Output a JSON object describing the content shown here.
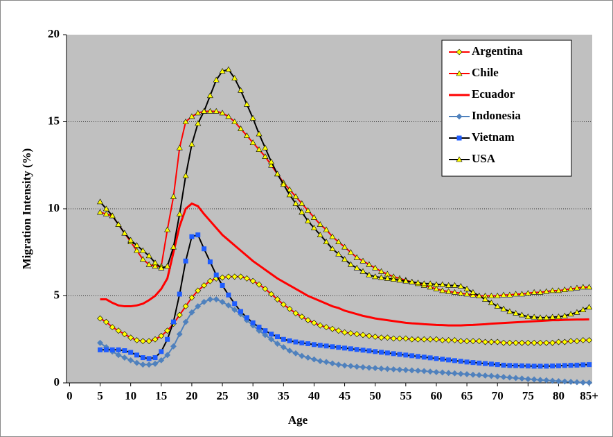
{
  "chart_data": {
    "type": "line",
    "x_label": "Age",
    "y_label": "Migration Intensity (%)",
    "x": [
      5,
      6,
      7,
      8,
      9,
      10,
      11,
      12,
      13,
      14,
      15,
      16,
      17,
      18,
      19,
      20,
      21,
      22,
      23,
      24,
      25,
      26,
      27,
      28,
      29,
      30,
      31,
      32,
      33,
      34,
      35,
      36,
      37,
      38,
      39,
      40,
      41,
      42,
      43,
      44,
      45,
      46,
      47,
      48,
      49,
      50,
      51,
      52,
      53,
      54,
      55,
      56,
      57,
      58,
      59,
      60,
      61,
      62,
      63,
      64,
      65,
      66,
      67,
      68,
      69,
      70,
      71,
      72,
      73,
      74,
      75,
      76,
      77,
      78,
      79,
      80,
      81,
      82,
      83,
      84,
      85
    ],
    "xlim": [
      -0.5,
      85.5
    ],
    "xticks": [
      0,
      5,
      10,
      15,
      20,
      25,
      30,
      35,
      40,
      45,
      50,
      55,
      60,
      65,
      70,
      75,
      80,
      {
        "value": 85,
        "label": "85+"
      }
    ],
    "ylim": [
      0,
      20
    ],
    "yticks": [
      0,
      5,
      10,
      15,
      20
    ],
    "grid": true,
    "legend": "upper right",
    "series": [
      {
        "name": "Argentina",
        "color": "#ff0000",
        "marker": "diamond",
        "marker_color": "#ffff00",
        "values": [
          3.7,
          3.5,
          3.2,
          3.0,
          2.8,
          2.6,
          2.45,
          2.4,
          2.4,
          2.5,
          2.7,
          3.0,
          3.4,
          3.9,
          4.4,
          4.9,
          5.3,
          5.6,
          5.85,
          6.0,
          6.05,
          6.1,
          6.1,
          6.1,
          6.0,
          5.85,
          5.65,
          5.4,
          5.1,
          4.8,
          4.5,
          4.25,
          4.0,
          3.8,
          3.6,
          3.45,
          3.3,
          3.2,
          3.1,
          3.0,
          2.9,
          2.85,
          2.8,
          2.75,
          2.7,
          2.65,
          2.6,
          2.6,
          2.55,
          2.55,
          2.55,
          2.5,
          2.5,
          2.5,
          2.5,
          2.5,
          2.45,
          2.45,
          2.45,
          2.4,
          2.4,
          2.4,
          2.4,
          2.35,
          2.35,
          2.35,
          2.3,
          2.3,
          2.3,
          2.3,
          2.3,
          2.3,
          2.3,
          2.3,
          2.3,
          2.35,
          2.35,
          2.4,
          2.4,
          2.45,
          2.45
        ]
      },
      {
        "name": "Chile",
        "color": "#ff0000",
        "marker": "triangle",
        "marker_color": "#ffff00",
        "values": [
          9.8,
          9.7,
          9.6,
          9.1,
          8.6,
          8.1,
          7.6,
          7.1,
          6.8,
          6.7,
          6.7,
          8.8,
          10.7,
          13.5,
          15.0,
          15.3,
          15.5,
          15.6,
          15.6,
          15.6,
          15.5,
          15.3,
          15.0,
          14.6,
          14.2,
          13.8,
          13.4,
          13.0,
          12.5,
          12.0,
          11.5,
          11.1,
          10.7,
          10.3,
          9.9,
          9.5,
          9.1,
          8.8,
          8.4,
          8.1,
          7.8,
          7.5,
          7.2,
          7.0,
          6.8,
          6.6,
          6.4,
          6.25,
          6.1,
          6.0,
          5.9,
          5.8,
          5.7,
          5.6,
          5.5,
          5.4,
          5.3,
          5.25,
          5.2,
          5.15,
          5.1,
          5.05,
          5.0,
          5.0,
          5.0,
          5.0,
          5.05,
          5.05,
          5.1,
          5.1,
          5.15,
          5.2,
          5.2,
          5.25,
          5.3,
          5.3,
          5.35,
          5.4,
          5.45,
          5.5,
          5.5
        ]
      },
      {
        "name": "Ecuador",
        "color": "#ff0000",
        "marker": "none",
        "marker_color": "#ff0000",
        "values": [
          4.8,
          4.8,
          4.6,
          4.45,
          4.4,
          4.4,
          4.45,
          4.55,
          4.75,
          5.0,
          5.4,
          6.0,
          7.5,
          9.0,
          10.0,
          10.3,
          10.15,
          9.7,
          9.3,
          8.9,
          8.5,
          8.2,
          7.9,
          7.6,
          7.3,
          7.0,
          6.75,
          6.5,
          6.25,
          6.0,
          5.8,
          5.6,
          5.4,
          5.2,
          5.0,
          4.85,
          4.7,
          4.55,
          4.4,
          4.3,
          4.15,
          4.05,
          3.95,
          3.85,
          3.78,
          3.7,
          3.65,
          3.6,
          3.55,
          3.5,
          3.45,
          3.42,
          3.4,
          3.37,
          3.35,
          3.33,
          3.32,
          3.3,
          3.3,
          3.3,
          3.32,
          3.33,
          3.35,
          3.37,
          3.4,
          3.42,
          3.44,
          3.46,
          3.48,
          3.5,
          3.52,
          3.54,
          3.56,
          3.58,
          3.6,
          3.6,
          3.62,
          3.63,
          3.64,
          3.64,
          3.65
        ]
      },
      {
        "name": "Indonesia",
        "color": "#4f81bd",
        "marker": "diamond",
        "marker_color": "#4f81bd",
        "values": [
          2.3,
          2.05,
          1.8,
          1.6,
          1.45,
          1.3,
          1.15,
          1.05,
          1.05,
          1.1,
          1.3,
          1.6,
          2.1,
          2.8,
          3.5,
          4.05,
          4.4,
          4.65,
          4.8,
          4.8,
          4.65,
          4.45,
          4.2,
          3.95,
          3.6,
          3.3,
          3.0,
          2.75,
          2.5,
          2.25,
          2.05,
          1.85,
          1.7,
          1.55,
          1.45,
          1.35,
          1.25,
          1.2,
          1.12,
          1.05,
          1.0,
          0.97,
          0.93,
          0.9,
          0.87,
          0.85,
          0.82,
          0.8,
          0.78,
          0.76,
          0.74,
          0.72,
          0.7,
          0.68,
          0.65,
          0.62,
          0.6,
          0.57,
          0.55,
          0.52,
          0.5,
          0.47,
          0.45,
          0.42,
          0.4,
          0.37,
          0.34,
          0.31,
          0.28,
          0.25,
          0.22,
          0.2,
          0.17,
          0.15,
          0.12,
          0.1,
          0.08,
          0.06,
          0.04,
          0.02,
          0.01
        ]
      },
      {
        "name": "Vietnam",
        "color": "#000000",
        "marker": "square",
        "marker_color": "#1e5cff",
        "values": [
          1.9,
          1.9,
          1.9,
          1.9,
          1.85,
          1.75,
          1.6,
          1.45,
          1.4,
          1.45,
          1.8,
          2.5,
          3.5,
          5.1,
          7.0,
          8.4,
          8.5,
          7.7,
          6.95,
          6.2,
          5.6,
          5.05,
          4.55,
          4.1,
          3.75,
          3.45,
          3.2,
          3.0,
          2.8,
          2.65,
          2.5,
          2.42,
          2.35,
          2.3,
          2.25,
          2.2,
          2.16,
          2.12,
          2.08,
          2.04,
          2.0,
          1.96,
          1.92,
          1.88,
          1.84,
          1.8,
          1.76,
          1.72,
          1.68,
          1.64,
          1.6,
          1.56,
          1.52,
          1.48,
          1.44,
          1.4,
          1.36,
          1.32,
          1.28,
          1.24,
          1.2,
          1.17,
          1.14,
          1.11,
          1.08,
          1.05,
          1.02,
          1.0,
          0.99,
          0.98,
          0.97,
          0.96,
          0.96,
          0.96,
          0.97,
          0.98,
          1.0,
          1.01,
          1.02,
          1.04,
          1.05
        ]
      },
      {
        "name": "USA",
        "color": "#000000",
        "marker": "triangle",
        "marker_color": "#ffff00",
        "values": [
          10.4,
          10.0,
          9.6,
          9.1,
          8.6,
          8.2,
          7.9,
          7.6,
          7.3,
          6.9,
          6.6,
          6.7,
          7.8,
          9.7,
          11.9,
          13.7,
          14.9,
          15.6,
          16.5,
          17.4,
          17.9,
          18.0,
          17.5,
          16.8,
          16.0,
          15.2,
          14.3,
          13.5,
          12.7,
          12.0,
          11.4,
          10.8,
          10.3,
          9.8,
          9.3,
          8.9,
          8.5,
          8.1,
          7.7,
          7.4,
          7.1,
          6.8,
          6.6,
          6.4,
          6.2,
          6.1,
          6.05,
          6.0,
          5.95,
          5.9,
          5.85,
          5.8,
          5.75,
          5.7,
          5.7,
          5.65,
          5.65,
          5.6,
          5.6,
          5.55,
          5.4,
          5.2,
          5.0,
          4.8,
          4.6,
          4.4,
          4.25,
          4.1,
          4.0,
          3.9,
          3.8,
          3.78,
          3.75,
          3.75,
          3.78,
          3.8,
          3.85,
          3.95,
          4.05,
          4.2,
          4.35
        ]
      }
    ]
  }
}
